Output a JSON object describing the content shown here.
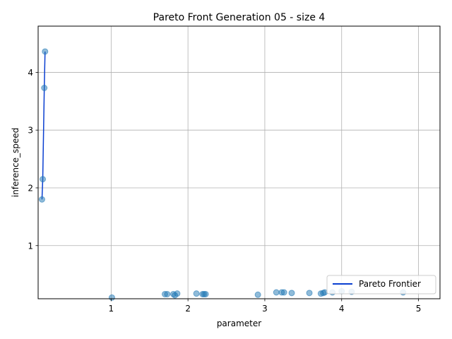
{
  "chart_data": {
    "type": "scatter",
    "title": "Pareto Front Generation 05 - size 4",
    "xlabel": "parameter",
    "ylabel": "inference_speed",
    "xlim": [
      0.05,
      5.28
    ],
    "ylim": [
      0.08,
      4.8
    ],
    "xticks": [
      1,
      2,
      3,
      4,
      5
    ],
    "yticks": [
      1,
      2,
      3,
      4
    ],
    "grid": true,
    "legend_placement": "lower right",
    "points": {
      "color": "#1f77b4",
      "x": [
        0.14,
        0.13,
        0.11,
        0.1,
        1.01,
        1.7,
        1.73,
        1.81,
        1.83,
        1.86,
        2.11,
        2.19,
        2.21,
        2.23,
        2.91,
        3.15,
        3.22,
        3.25,
        3.35,
        3.58,
        3.73,
        3.76,
        3.78,
        3.88,
        4.0,
        4.13,
        4.8
      ],
      "y": [
        4.36,
        3.73,
        2.15,
        1.8,
        0.1,
        0.16,
        0.16,
        0.16,
        0.14,
        0.17,
        0.17,
        0.16,
        0.16,
        0.16,
        0.15,
        0.19,
        0.19,
        0.19,
        0.18,
        0.18,
        0.17,
        0.18,
        0.19,
        0.19,
        0.21,
        0.2,
        0.19
      ]
    },
    "series": [
      {
        "name": "Pareto Frontier",
        "color": "#0a3fd1",
        "x": [
          0.14,
          0.13,
          0.11,
          0.1
        ],
        "y": [
          4.36,
          3.73,
          2.15,
          1.8
        ]
      }
    ]
  }
}
